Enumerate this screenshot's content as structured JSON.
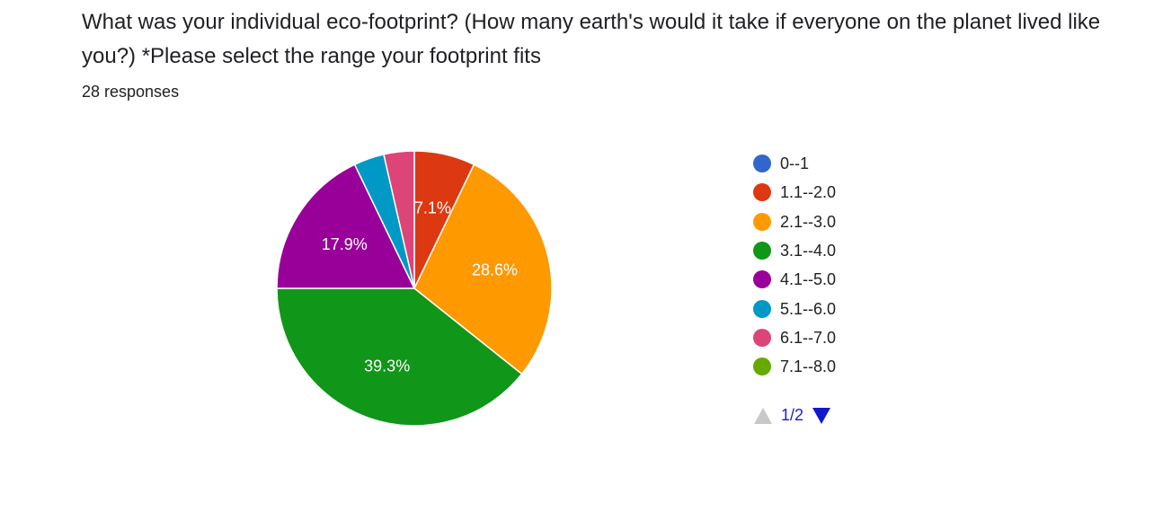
{
  "question": {
    "title": "What was your individual eco-footprint? (How many earth's would it take if everyone on the planet lived like you?) *Please select the range your footprint fits",
    "responses": "28 responses"
  },
  "chart_data": {
    "type": "pie",
    "total_responses": 28,
    "slices": [
      {
        "label": "0--1",
        "count": 0,
        "percent": 0,
        "color": "#3366cc",
        "label_shown": ""
      },
      {
        "label": "1.1--2.0",
        "count": 2,
        "percent": 7.1,
        "color": "#dc3912",
        "label_shown": "7.1%"
      },
      {
        "label": "2.1--3.0",
        "count": 8,
        "percent": 28.6,
        "color": "#ff9900",
        "label_shown": "28.6%"
      },
      {
        "label": "3.1--4.0",
        "count": 11,
        "percent": 39.3,
        "color": "#109618",
        "label_shown": "39.3%"
      },
      {
        "label": "4.1--5.0",
        "count": 5,
        "percent": 17.9,
        "color": "#990099",
        "label_shown": "17.9%"
      },
      {
        "label": "5.1--6.0",
        "count": 1,
        "percent": 3.6,
        "color": "#0099c6",
        "label_shown": ""
      },
      {
        "label": "6.1--7.0",
        "count": 1,
        "percent": 3.6,
        "color": "#dd4477",
        "label_shown": ""
      },
      {
        "label": "7.1--8.0",
        "count": 0,
        "percent": 0,
        "color": "#66aa00",
        "label_shown": ""
      }
    ],
    "legend_position": "right"
  },
  "legend": {
    "pager_text": "1/2"
  }
}
